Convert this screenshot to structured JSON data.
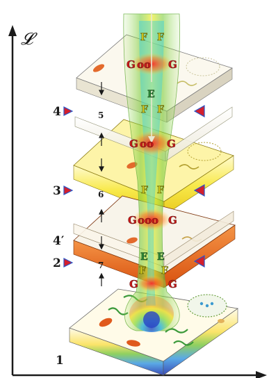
{
  "axis": {
    "symbol": "𝓛"
  },
  "side_labels": [
    "4",
    "3",
    "4′",
    "2",
    "1"
  ],
  "inner_labels": [
    "5",
    "6",
    "7"
  ],
  "channel_letters": {
    "f": "F",
    "g": "G",
    "e": "E",
    "oo": "oo",
    "ooo": "ooo"
  },
  "colors": {
    "plate_white": "#f7f4ea",
    "plate_yellow": "#f6e640",
    "plate_orange": "#ec6a1c",
    "marker_red": "#d41f2c",
    "marker_blue": "#2a56c8",
    "channel_green": "#8fd060"
  }
}
